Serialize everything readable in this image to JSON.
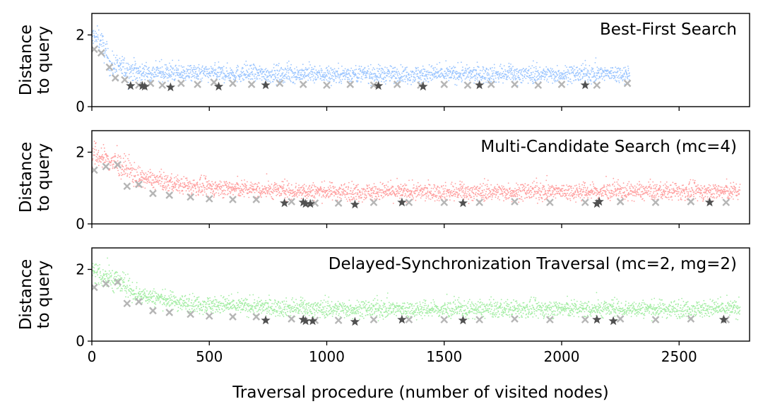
{
  "chart_data": [
    {
      "type": "scatter",
      "title": "Best-First Search",
      "ylabel": "Distance\nto query",
      "xlabel": "",
      "xlim": [
        0,
        2800
      ],
      "ylim": [
        0,
        2.6
      ],
      "yticks": [
        0,
        2
      ],
      "xticks": [
        0,
        500,
        1000,
        1500,
        2000,
        2500
      ],
      "colors": {
        "visited": "#99c4ff",
        "candidate": "#b5b5b5",
        "best": "#505050"
      },
      "visited_points": {
        "count": 2290,
        "profile": [
          [
            0,
            1.95
          ],
          [
            40,
            1.8
          ],
          [
            80,
            1.15
          ],
          [
            200,
            0.95
          ],
          [
            500,
            0.92
          ],
          [
            1000,
            0.9
          ],
          [
            1500,
            0.9
          ],
          [
            2000,
            0.9
          ],
          [
            2290,
            0.92
          ]
        ]
      },
      "candidates_x": [
        {
          "x": 10,
          "y": 1.6
        },
        {
          "x": 40,
          "y": 1.5
        },
        {
          "x": 75,
          "y": 1.1
        },
        {
          "x": 100,
          "y": 0.8
        },
        {
          "x": 140,
          "y": 0.75
        },
        {
          "x": 200,
          "y": 0.6
        },
        {
          "x": 250,
          "y": 0.65
        },
        {
          "x": 300,
          "y": 0.6
        },
        {
          "x": 380,
          "y": 0.65
        },
        {
          "x": 450,
          "y": 0.62
        },
        {
          "x": 520,
          "y": 0.68
        },
        {
          "x": 600,
          "y": 0.65
        },
        {
          "x": 680,
          "y": 0.62
        },
        {
          "x": 800,
          "y": 0.65
        },
        {
          "x": 900,
          "y": 0.62
        },
        {
          "x": 1000,
          "y": 0.6
        },
        {
          "x": 1100,
          "y": 0.62
        },
        {
          "x": 1200,
          "y": 0.6
        },
        {
          "x": 1300,
          "y": 0.62
        },
        {
          "x": 1400,
          "y": 0.6
        },
        {
          "x": 1500,
          "y": 0.62
        },
        {
          "x": 1600,
          "y": 0.6
        },
        {
          "x": 1700,
          "y": 0.62
        },
        {
          "x": 1800,
          "y": 0.62
        },
        {
          "x": 1900,
          "y": 0.6
        },
        {
          "x": 2000,
          "y": 0.62
        },
        {
          "x": 2150,
          "y": 0.6
        },
        {
          "x": 2280,
          "y": 0.65
        }
      ],
      "best_stars": [
        {
          "x": 165,
          "y": 0.58
        },
        {
          "x": 215,
          "y": 0.58
        },
        {
          "x": 225,
          "y": 0.56
        },
        {
          "x": 335,
          "y": 0.54
        },
        {
          "x": 540,
          "y": 0.56
        },
        {
          "x": 740,
          "y": 0.6
        },
        {
          "x": 1220,
          "y": 0.58
        },
        {
          "x": 1410,
          "y": 0.56
        },
        {
          "x": 1650,
          "y": 0.6
        },
        {
          "x": 2100,
          "y": 0.6
        }
      ]
    },
    {
      "type": "scatter",
      "title": "Multi-Candidate Search (mc=4)",
      "ylabel": "Distance\nto query",
      "xlabel": "",
      "xlim": [
        0,
        2800
      ],
      "ylim": [
        0,
        2.6
      ],
      "yticks": [
        0,
        2
      ],
      "xticks": [
        0,
        500,
        1000,
        1500,
        2000,
        2500
      ],
      "colors": {
        "visited": "#ff9e9e",
        "candidate": "#b5b5b5",
        "best": "#505050"
      },
      "visited_points": {
        "count": 2760,
        "profile": [
          [
            0,
            1.95
          ],
          [
            100,
            1.7
          ],
          [
            200,
            1.3
          ],
          [
            400,
            1.05
          ],
          [
            700,
            0.95
          ],
          [
            1000,
            0.9
          ],
          [
            1500,
            0.88
          ],
          [
            2000,
            0.9
          ],
          [
            2760,
            0.9
          ]
        ]
      },
      "candidates_x": [
        {
          "x": 10,
          "y": 1.5
        },
        {
          "x": 60,
          "y": 1.6
        },
        {
          "x": 110,
          "y": 1.65
        },
        {
          "x": 150,
          "y": 1.05
        },
        {
          "x": 200,
          "y": 1.1
        },
        {
          "x": 260,
          "y": 0.85
        },
        {
          "x": 330,
          "y": 0.8
        },
        {
          "x": 420,
          "y": 0.75
        },
        {
          "x": 500,
          "y": 0.7
        },
        {
          "x": 600,
          "y": 0.68
        },
        {
          "x": 700,
          "y": 0.68
        },
        {
          "x": 850,
          "y": 0.62
        },
        {
          "x": 950,
          "y": 0.58
        },
        {
          "x": 1050,
          "y": 0.58
        },
        {
          "x": 1200,
          "y": 0.6
        },
        {
          "x": 1350,
          "y": 0.6
        },
        {
          "x": 1500,
          "y": 0.6
        },
        {
          "x": 1650,
          "y": 0.6
        },
        {
          "x": 1800,
          "y": 0.62
        },
        {
          "x": 1950,
          "y": 0.6
        },
        {
          "x": 2100,
          "y": 0.6
        },
        {
          "x": 2250,
          "y": 0.62
        },
        {
          "x": 2400,
          "y": 0.6
        },
        {
          "x": 2550,
          "y": 0.62
        },
        {
          "x": 2700,
          "y": 0.6
        }
      ],
      "best_stars": [
        {
          "x": 820,
          "y": 0.58
        },
        {
          "x": 900,
          "y": 0.6
        },
        {
          "x": 910,
          "y": 0.56
        },
        {
          "x": 930,
          "y": 0.56
        },
        {
          "x": 1120,
          "y": 0.54
        },
        {
          "x": 1320,
          "y": 0.6
        },
        {
          "x": 1580,
          "y": 0.58
        },
        {
          "x": 2150,
          "y": 0.56
        },
        {
          "x": 2160,
          "y": 0.62
        },
        {
          "x": 2630,
          "y": 0.6
        }
      ]
    },
    {
      "type": "scatter",
      "title": "Delayed-Synchronization Traversal (mc=2, mg=2)",
      "ylabel": "Distance\nto query",
      "xlabel": "Traversal procedure (number of visited nodes)",
      "xlim": [
        0,
        2800
      ],
      "ylim": [
        0,
        2.6
      ],
      "yticks": [
        0,
        2
      ],
      "xticks": [
        0,
        500,
        1000,
        1500,
        2000,
        2500
      ],
      "colors": {
        "visited": "#a3eda3",
        "candidate": "#b5b5b5",
        "best": "#505050"
      },
      "visited_points": {
        "count": 2760,
        "profile": [
          [
            0,
            1.95
          ],
          [
            100,
            1.7
          ],
          [
            200,
            1.3
          ],
          [
            400,
            1.05
          ],
          [
            700,
            0.95
          ],
          [
            1000,
            0.9
          ],
          [
            1500,
            0.88
          ],
          [
            2000,
            0.9
          ],
          [
            2760,
            0.9
          ]
        ]
      },
      "candidates_x": [
        {
          "x": 10,
          "y": 1.5
        },
        {
          "x": 60,
          "y": 1.6
        },
        {
          "x": 110,
          "y": 1.65
        },
        {
          "x": 150,
          "y": 1.05
        },
        {
          "x": 200,
          "y": 1.1
        },
        {
          "x": 260,
          "y": 0.85
        },
        {
          "x": 330,
          "y": 0.8
        },
        {
          "x": 420,
          "y": 0.75
        },
        {
          "x": 500,
          "y": 0.7
        },
        {
          "x": 600,
          "y": 0.68
        },
        {
          "x": 700,
          "y": 0.68
        },
        {
          "x": 850,
          "y": 0.62
        },
        {
          "x": 950,
          "y": 0.58
        },
        {
          "x": 1050,
          "y": 0.58
        },
        {
          "x": 1200,
          "y": 0.6
        },
        {
          "x": 1350,
          "y": 0.6
        },
        {
          "x": 1500,
          "y": 0.6
        },
        {
          "x": 1650,
          "y": 0.6
        },
        {
          "x": 1800,
          "y": 0.62
        },
        {
          "x": 1950,
          "y": 0.6
        },
        {
          "x": 2100,
          "y": 0.6
        },
        {
          "x": 2250,
          "y": 0.62
        },
        {
          "x": 2400,
          "y": 0.6
        },
        {
          "x": 2550,
          "y": 0.62
        },
        {
          "x": 2700,
          "y": 0.6
        }
      ],
      "best_stars": [
        {
          "x": 740,
          "y": 0.58
        },
        {
          "x": 900,
          "y": 0.6
        },
        {
          "x": 910,
          "y": 0.56
        },
        {
          "x": 940,
          "y": 0.56
        },
        {
          "x": 1120,
          "y": 0.54
        },
        {
          "x": 1320,
          "y": 0.6
        },
        {
          "x": 1580,
          "y": 0.58
        },
        {
          "x": 2150,
          "y": 0.6
        },
        {
          "x": 2220,
          "y": 0.56
        },
        {
          "x": 2690,
          "y": 0.6
        }
      ]
    }
  ]
}
